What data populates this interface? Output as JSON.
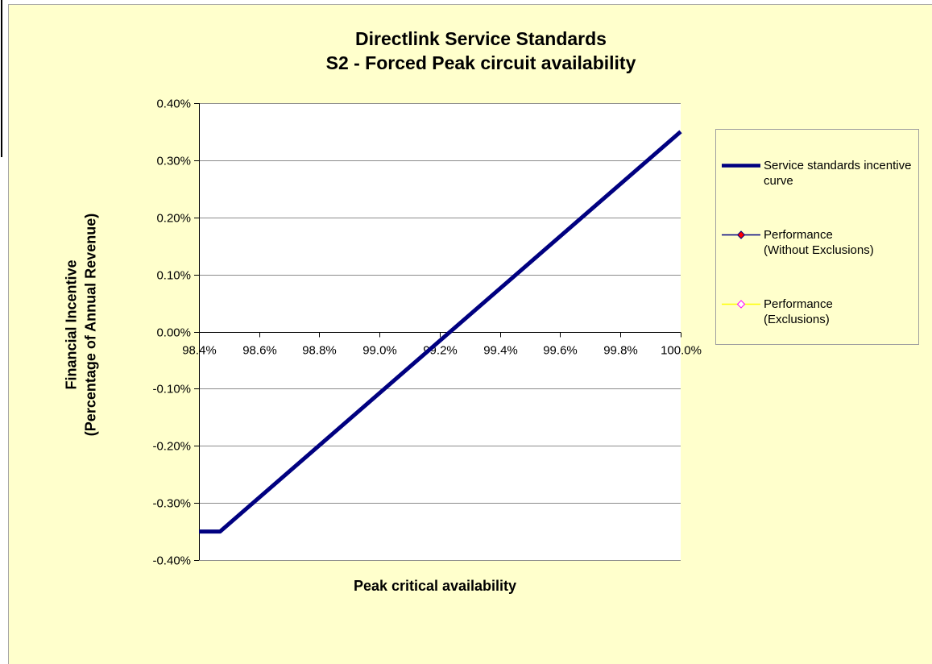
{
  "chart_data": {
    "type": "line",
    "title": "Directlink Service Standards",
    "subtitle": "S2 - Forced Peak circuit availability",
    "xlabel": "Peak critical availability",
    "ylabel": "Financial Incentive",
    "ylabel_line2": "(Percentage of Annual Revenue)",
    "xlim": [
      98.4,
      100.0
    ],
    "ylim": [
      -0.4,
      0.4
    ],
    "x_ticks": [
      98.4,
      98.6,
      98.8,
      99.0,
      99.2,
      99.4,
      99.6,
      99.8,
      100.0
    ],
    "x_tick_labels": [
      "98.4%",
      "98.6%",
      "98.8%",
      "99.0%",
      "99.2%",
      "99.4%",
      "99.6%",
      "99.8%",
      "100.0%"
    ],
    "y_ticks": [
      0.4,
      0.3,
      0.2,
      0.1,
      0.0,
      -0.1,
      -0.2,
      -0.3,
      -0.4
    ],
    "y_tick_labels": [
      "0.40%",
      "0.30%",
      "0.20%",
      "0.10%",
      "0.00%",
      "-0.10%",
      "-0.20%",
      "-0.30%",
      "-0.40%"
    ],
    "x_axis_crosses_y": 0.0,
    "grid": {
      "horizontal": true,
      "vertical": false
    },
    "legend_position": "right",
    "series": [
      {
        "name": "Service standards incentive\ncurve",
        "x": [
          98.4,
          98.47,
          100.0
        ],
        "y": [
          -0.35,
          -0.35,
          0.35
        ],
        "color": "#000080"
      },
      {
        "name": "Performance\n(Without Exclusions)",
        "x": [],
        "y": [],
        "color": "#000080",
        "marker": "diamond",
        "marker_fill": "#FF0000",
        "marker_border": "#000080"
      },
      {
        "name": "Performance\n(Exclusions)",
        "x": [],
        "y": [],
        "color": "#FFFF00",
        "marker": "diamond",
        "marker_fill": "#FFFFFF",
        "marker_border": "#FF00FF"
      }
    ]
  },
  "colors": {
    "chart_background": "#FFFFCC",
    "plot_background": "#FFFFFF",
    "gridline": "#8C8C8C",
    "axis": "#000000",
    "legend_border": "#A0A0A0"
  }
}
